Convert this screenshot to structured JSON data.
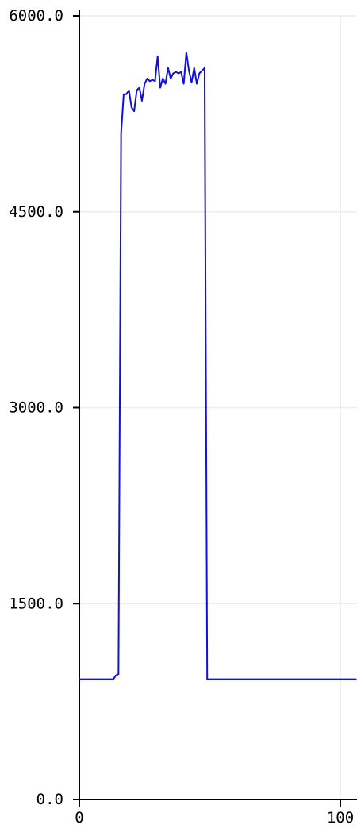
{
  "chart_data": {
    "type": "line",
    "xlim": [
      0,
      106
    ],
    "ylim": [
      0,
      6000
    ],
    "grid": true,
    "x_ticks": [
      {
        "value": 0,
        "label": "0"
      },
      {
        "value": 100,
        "label": "100"
      }
    ],
    "y_ticks": [
      {
        "value": 0,
        "label": "0.0"
      },
      {
        "value": 1500,
        "label": "1500.0"
      },
      {
        "value": 3000,
        "label": "3000.0"
      },
      {
        "value": 4500,
        "label": "4500.0"
      },
      {
        "value": 6000,
        "label": "6000.0"
      }
    ],
    "series": [
      {
        "color": "#1010e0",
        "x": [
          0,
          1,
          2,
          3,
          4,
          5,
          6,
          7,
          8,
          9,
          10,
          11,
          12,
          13,
          14,
          15,
          16,
          17,
          18,
          19,
          20,
          21,
          22,
          23,
          24,
          25,
          26,
          27,
          28,
          29,
          30,
          31,
          32,
          33,
          34,
          35,
          36,
          37,
          38,
          39,
          40,
          41,
          42,
          43,
          44,
          45,
          46,
          47,
          48,
          49,
          50,
          51,
          52,
          53,
          54,
          55,
          56,
          57,
          58,
          59,
          60,
          61,
          62,
          63,
          64,
          65,
          66,
          67,
          68,
          69,
          70,
          71,
          72,
          73,
          74,
          75,
          76,
          77,
          78,
          79,
          80,
          81,
          82,
          83,
          84,
          85,
          86,
          87,
          88,
          89,
          90,
          91,
          92,
          93,
          94,
          95,
          96,
          97,
          98,
          99,
          100,
          101,
          102,
          103,
          104,
          105,
          106
        ],
        "y": [
          920,
          920,
          920,
          920,
          920,
          920,
          920,
          920,
          920,
          920,
          920,
          920,
          920,
          920,
          950,
          960,
          5100,
          5400,
          5400,
          5430,
          5300,
          5270,
          5430,
          5450,
          5350,
          5480,
          5520,
          5500,
          5510,
          5500,
          5690,
          5450,
          5520,
          5480,
          5600,
          5520,
          5560,
          5570,
          5560,
          5570,
          5480,
          5720,
          5580,
          5490,
          5600,
          5480,
          5560,
          5580,
          5600,
          920,
          920,
          920,
          920,
          920,
          920,
          920,
          920,
          920,
          920,
          920,
          920,
          920,
          920,
          920,
          920,
          920,
          920,
          920,
          920,
          920,
          920,
          920,
          920,
          920,
          920,
          920,
          920,
          920,
          920,
          920,
          920,
          920,
          920,
          920,
          920,
          920,
          920,
          920,
          920,
          920,
          920,
          920,
          920,
          920,
          920,
          920,
          920,
          920,
          920,
          920,
          920,
          920,
          920,
          920,
          920,
          920,
          920
        ]
      }
    ]
  }
}
